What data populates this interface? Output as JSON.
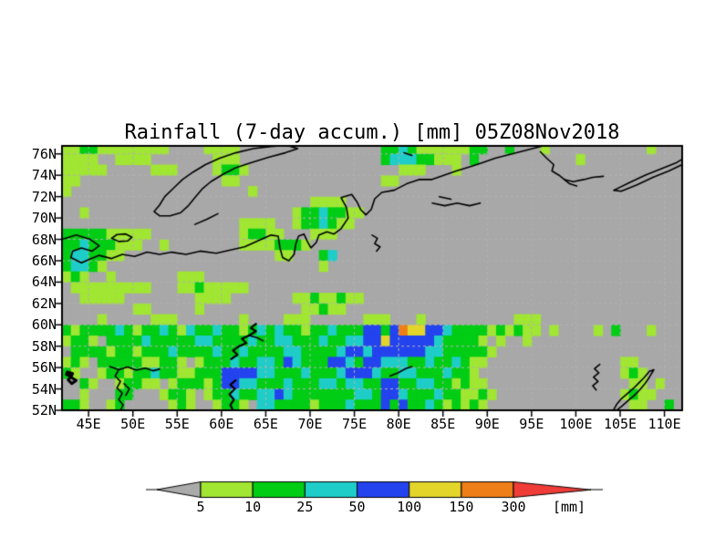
{
  "title": "Rainfall (7-day accum.) [mm] 05Z08Nov2018",
  "colors": {
    "page_background": "#ffffff",
    "map_background": "#a8a8a8",
    "coastline": "#000000",
    "frame": "#000000",
    "gridline": "#b2b2b2",
    "levels": {
      "a": "#a0e632",
      "b": "#00cd14",
      "c": "#1ecdc8",
      "d": "#2343ee",
      "e": "#e3d52a",
      "f": "#ee7e18"
    }
  },
  "axes": {
    "lat_labels": [
      "76N",
      "74N",
      "72N",
      "70N",
      "68N",
      "66N",
      "64N",
      "62N",
      "60N",
      "58N",
      "56N",
      "54N",
      "52N"
    ],
    "lat_values": [
      76,
      74,
      72,
      70,
      68,
      66,
      64,
      62,
      60,
      58,
      56,
      54,
      52
    ],
    "lon_labels": [
      "45E",
      "50E",
      "55E",
      "60E",
      "65E",
      "70E",
      "75E",
      "80E",
      "85E",
      "90E",
      "95E",
      "100E",
      "105E",
      "110E"
    ],
    "lon_values": [
      45,
      50,
      55,
      60,
      65,
      70,
      75,
      80,
      85,
      90,
      95,
      100,
      105,
      110
    ]
  },
  "colorbar": {
    "tick_labels": [
      "5",
      "10",
      "25",
      "50",
      "100",
      "150",
      "300"
    ],
    "units_label": "[mm]",
    "segment_colors": [
      "#a0e632",
      "#00cd14",
      "#1ecdc8",
      "#2343ee",
      "#e3d52a",
      "#ee7e18"
    ],
    "under_color": "#ababab",
    "over_color": "#f03c38"
  },
  "chart_data": {
    "type": "heatmap",
    "description": "7-day accumulated rainfall [mm] on lon/lat grid; '.'=<5 (gray), a=5-10, b=10-25, c=25-50, d=50-100, e=100-150, f=150-300",
    "lon_start": 42,
    "lon_step": 1,
    "lat_start": 77,
    "lat_step": -1,
    "lon_range": [
      42,
      112
    ],
    "lat_range": [
      52,
      76.75
    ],
    "rows": [
      [
        "aabbaaaaaa",
        "aa....aaaa",
        "..........",
        "......bbcb",
        "aaaaaabb..",
        "b...a.....",
        "......a..."
      ],
      [
        "aaaa..aaaa",
        ".......aaa",
        "..........",
        "......bccc",
        "bbaaa.b...",
        "........a.",
        ".........."
      ],
      [
        "aaaaa.....",
        "aaa....abb",
        "a.........",
        "........aa",
        "a...a.....",
        "..........",
        ".........."
      ],
      [
        "aa........",
        "........aa",
        "..........",
        "......aa..",
        "..........",
        "..........",
        ".........."
      ],
      [
        "a.........",
        "..........",
        ".a........",
        "..........",
        "..........",
        "..........",
        ".........."
      ],
      [
        "..........",
        "..........",
        "........aa",
        "aa........",
        "..........",
        "..........",
        ".........."
      ],
      [
        "..a.......",
        "..........",
        "......abbc",
        "bbaa......",
        "..........",
        "..........",
        ".........."
      ],
      [
        "..........",
        "..........",
        "aaaa..abbc",
        "baa.......",
        "..........",
        "..........",
        ".........."
      ],
      [
        "bbbbbaaaaa",
        "..........",
        "abbaa...aa",
        "a.........",
        "..........",
        "..........",
        ".........."
      ],
      [
        "bbcbbbaaa.",
        ".a........",
        "aaaabbba..",
        "..........",
        "..........",
        "..........",
        ".........."
      ],
      [
        "bccbbaa...",
        "..........",
        "....aa...b",
        "c.........",
        "..........",
        "..........",
        ".........."
      ],
      [
        "bccba.....",
        "..........",
        ".........a",
        "..........",
        "..........",
        "..........",
        ".........."
      ],
      [
        "aba..a....",
        "...aaa....",
        "..........",
        "..........",
        "..........",
        "..........",
        ".........."
      ],
      [
        ".aaaaaaaaa",
        "...aabaaaa",
        "a.........",
        "..........",
        "..........",
        "..........",
        ".........."
      ],
      [
        "..aaaaa...",
        ".....aaaa.",
        "......aaba",
        "abaa......",
        "..........",
        "..........",
        ".........."
      ],
      [
        "........aa",
        ".....a....",
        ".......aab",
        "aa........",
        "..........",
        "..........",
        ".........."
      ],
      [
        "....a.....",
        "aaa.......",
        "a....aaa..",
        "....aaa...",
        "a.........",
        ".aaa......",
        ".........."
      ],
      [
        "babbbbcbab",
        "bcbacbbcbb",
        "abcbcbbabb",
        "cbbbddbdfe",
        "eddcbbbbab",
        "abaa.a....",
        "a.b...a..."
      ],
      [
        "abba.bbbbc",
        "bbbbbccbbb",
        "bcbbccbbbc",
        "bbccddeddd",
        "ddcbbbba.a",
        "..a.......",
        ".........."
      ],
      [
        ".bbbbabbab",
        "bbcbbbbcbb",
        "cbbbbccbbb",
        "bcddcddddd",
        "dccbbbbba.",
        "..........",
        ".........."
      ],
      [
        "aba.bbbbba",
        "abba.abbbc",
        "bbccbdcbbb",
        "ddcbddcccb",
        "bcbbcbaa..",
        "..........",
        "...aa....."
      ],
      [
        "ba..abbabb",
        "cbbaabbbdd",
        "ddccbbbcbb",
        "bcdddcbbcc",
        "bbbcbba...",
        "..........",
        "...aba...."
      ],
      [
        "..ba..abba",
        "a.abbbabdd",
        "ccbbbcbbbc",
        "cbccbbddbb",
        "ccbbabaa..",
        "..........",
        "....aa.a.."
      ],
      [
        "..a...bb..",
        ".abba.abbc",
        "bbccdcbbbb",
        "bbbccbddcb",
        "bbcbbaaba.",
        "..........",
        "...abaa..."
      ],
      [
        "bba..ab...",
        "..aba..abb",
        "a.ccbbbbab",
        "bbcbbbdbdb",
        "bcbababa..",
        "..........",
        "....aa..b."
      ]
    ],
    "coastlines": [
      {
        "pts": [
          [
            42,
            68.0
          ],
          [
            43.6,
            68.4
          ],
          [
            45.2,
            68.0
          ],
          [
            46.2,
            67.4
          ],
          [
            45.4,
            66.9
          ],
          [
            44.2,
            67.2
          ],
          [
            43.2,
            66.9
          ],
          [
            43.0,
            66.3
          ],
          [
            44.2,
            65.8
          ],
          [
            45.0,
            66.1
          ],
          [
            46.2,
            66.5
          ],
          [
            47.6,
            66.2
          ],
          [
            48.8,
            66.6
          ],
          [
            50.2,
            66.4
          ],
          [
            51.6,
            66.8
          ],
          [
            53.0,
            66.6
          ],
          [
            54.4,
            66.8
          ],
          [
            56.0,
            66.6
          ],
          [
            57.6,
            66.9
          ],
          [
            59.4,
            66.7
          ],
          [
            61.0,
            67.0
          ],
          [
            62.6,
            67.3
          ],
          [
            64.2,
            67.9
          ],
          [
            65.6,
            68.4
          ],
          [
            66.4,
            68.3
          ],
          [
            66.6,
            67.2
          ],
          [
            66.9,
            66.3
          ],
          [
            67.6,
            66.0
          ],
          [
            68.2,
            66.6
          ],
          [
            68.4,
            67.6
          ],
          [
            68.7,
            68.3
          ],
          [
            69.3,
            68.5
          ],
          [
            69.7,
            67.8
          ],
          [
            70.1,
            67.2
          ],
          [
            70.7,
            67.7
          ],
          [
            71.0,
            68.4
          ],
          [
            71.9,
            68.7
          ],
          [
            72.7,
            68.5
          ],
          [
            73.5,
            69.0
          ],
          [
            74.3,
            70.0
          ],
          [
            74.1,
            71.0
          ],
          [
            73.5,
            71.9
          ],
          [
            74.7,
            72.2
          ],
          [
            75.3,
            71.5
          ],
          [
            75.7,
            70.8
          ],
          [
            76.3,
            70.3
          ],
          [
            76.9,
            70.8
          ],
          [
            77.3,
            71.8
          ],
          [
            78.1,
            72.4
          ],
          [
            79.5,
            72.6
          ],
          [
            80.9,
            73.2
          ],
          [
            82.3,
            73.6
          ],
          [
            83.7,
            73.6
          ],
          [
            85.1,
            74.0
          ],
          [
            86.5,
            74.4
          ],
          [
            88.1,
            74.8
          ],
          [
            89.5,
            75.2
          ],
          [
            90.9,
            75.6
          ],
          [
            92.3,
            75.9
          ],
          [
            93.7,
            76.2
          ],
          [
            95.1,
            76.5
          ],
          [
            96.3,
            76.75
          ]
        ]
      },
      {
        "pts": [
          [
            96.0,
            76.2
          ],
          [
            96.7,
            75.6
          ],
          [
            97.5,
            75.0
          ],
          [
            97.3,
            74.4
          ],
          [
            98.1,
            74.0
          ],
          [
            98.7,
            73.6
          ],
          [
            99.7,
            73.4
          ],
          [
            100.9,
            73.6
          ],
          [
            101.9,
            73.8
          ],
          [
            103.1,
            73.9
          ]
        ]
      },
      {
        "pts": [
          [
            98.7,
            73.6
          ],
          [
            99.3,
            73.2
          ],
          [
            100.1,
            73.0
          ]
        ]
      },
      {
        "pts": [
          [
            104.3,
            72.6
          ],
          [
            106.0,
            73.3
          ],
          [
            107.8,
            74.0
          ],
          [
            109.6,
            74.6
          ],
          [
            111.4,
            75.2
          ],
          [
            112.0,
            75.5
          ]
        ]
      },
      {
        "pts": [
          [
            104.3,
            72.6
          ],
          [
            105.1,
            72.5
          ],
          [
            106.9,
            73.1
          ],
          [
            108.7,
            73.8
          ],
          [
            110.5,
            74.4
          ],
          [
            112.0,
            75.0
          ]
        ]
      },
      {
        "pts": [
          [
            52.4,
            70.6
          ],
          [
            53.0,
            71.2
          ],
          [
            53.6,
            72.0
          ],
          [
            54.6,
            72.8
          ],
          [
            55.6,
            73.6
          ],
          [
            56.8,
            74.3
          ],
          [
            58.2,
            75.0
          ],
          [
            59.8,
            75.6
          ],
          [
            61.6,
            76.1
          ],
          [
            63.6,
            76.5
          ],
          [
            65.6,
            76.7
          ],
          [
            67.4,
            76.8
          ],
          [
            68.6,
            76.5
          ],
          [
            67.2,
            76.1
          ],
          [
            65.4,
            75.7
          ],
          [
            63.4,
            75.2
          ],
          [
            61.6,
            74.7
          ],
          [
            60.2,
            74.1
          ],
          [
            58.8,
            73.4
          ],
          [
            57.8,
            72.7
          ],
          [
            57.0,
            71.9
          ],
          [
            56.2,
            71.1
          ],
          [
            55.4,
            70.5
          ],
          [
            54.2,
            70.2
          ],
          [
            53.0,
            70.2
          ],
          [
            52.4,
            70.6
          ]
        ]
      },
      {
        "pts": [
          [
            57.0,
            69.4
          ],
          [
            58.4,
            69.9
          ],
          [
            59.6,
            70.4
          ]
        ]
      },
      {
        "pts": [
          [
            47.6,
            68.1
          ],
          [
            48.2,
            68.45
          ],
          [
            49.2,
            68.5
          ],
          [
            49.9,
            68.2
          ],
          [
            49.4,
            67.85
          ],
          [
            48.4,
            67.8
          ],
          [
            47.6,
            68.1
          ]
        ]
      },
      {
        "pts": [
          [
            83.8,
            71.4
          ],
          [
            85.2,
            71.15
          ],
          [
            86.6,
            71.4
          ],
          [
            88.0,
            71.15
          ],
          [
            89.2,
            71.4
          ]
        ]
      },
      {
        "pts": [
          [
            84.6,
            72.0
          ],
          [
            85.9,
            71.75
          ]
        ]
      },
      {
        "pts": [
          [
            77.0,
            68.4
          ],
          [
            77.6,
            68.1
          ],
          [
            77.3,
            67.6
          ],
          [
            77.9,
            67.3
          ],
          [
            77.5,
            66.9
          ]
        ]
      },
      {
        "pts": [
          [
            80.6,
            76.1
          ],
          [
            81.5,
            75.85
          ]
        ]
      },
      {
        "pts": [
          [
            47.4,
            56.1
          ],
          [
            48.4,
            55.8
          ],
          [
            49.4,
            56.05
          ],
          [
            50.4,
            55.75
          ],
          [
            51.4,
            55.95
          ],
          [
            52.3,
            55.7
          ],
          [
            53.0,
            55.85
          ]
        ]
      },
      {
        "pts": [
          [
            48.4,
            55.8
          ],
          [
            48.0,
            55.2
          ],
          [
            48.6,
            54.7
          ],
          [
            48.2,
            54.1
          ],
          [
            48.8,
            53.6
          ],
          [
            48.4,
            53.0
          ],
          [
            48.9,
            52.5
          ],
          [
            48.6,
            52.0
          ]
        ]
      },
      {
        "pts": [
          [
            49.0,
            54.5
          ],
          [
            49.6,
            54.0
          ],
          [
            49.2,
            53.4
          ]
        ]
      },
      {
        "lw": 3,
        "pts": [
          [
            42.6,
            55.6
          ],
          [
            43.2,
            55.45
          ],
          [
            43.0,
            55.1
          ],
          [
            43.6,
            54.8
          ],
          [
            43.1,
            54.5
          ],
          [
            42.7,
            54.85
          ],
          [
            43.0,
            55.2
          ],
          [
            42.5,
            55.35
          ],
          [
            42.6,
            55.6
          ]
        ]
      },
      {
        "lw": 2.2,
        "pts": [
          [
            63.9,
            60.1
          ],
          [
            63.3,
            59.7
          ],
          [
            63.9,
            59.4
          ],
          [
            63.1,
            59.0
          ],
          [
            62.3,
            58.7
          ],
          [
            62.8,
            58.3
          ],
          [
            62.0,
            58.0
          ],
          [
            61.3,
            57.6
          ],
          [
            61.8,
            57.2
          ],
          [
            61.1,
            56.8
          ]
        ]
      },
      {
        "pts": [
          [
            63.1,
            59.0
          ],
          [
            64.0,
            58.8
          ],
          [
            64.7,
            58.5
          ]
        ]
      },
      {
        "lw": 2.2,
        "pts": [
          [
            61.6,
            54.8
          ],
          [
            61.0,
            54.4
          ],
          [
            61.5,
            54.0
          ],
          [
            60.9,
            53.5
          ],
          [
            61.4,
            53.0
          ],
          [
            61.0,
            52.5
          ],
          [
            61.3,
            52.0
          ]
        ]
      },
      {
        "pts": [
          [
            79.0,
            55.2
          ],
          [
            79.9,
            55.5
          ],
          [
            80.8,
            55.9
          ],
          [
            81.5,
            56.1
          ]
        ]
      },
      {
        "pts": [
          [
            102.7,
            56.3
          ],
          [
            102.1,
            55.9
          ],
          [
            102.6,
            55.5
          ],
          [
            102.0,
            55.1
          ],
          [
            102.5,
            54.7
          ],
          [
            101.9,
            54.3
          ],
          [
            102.3,
            53.9
          ]
        ]
      },
      {
        "pts": [
          [
            104.6,
            52.0
          ],
          [
            105.2,
            52.4
          ],
          [
            105.9,
            52.9
          ],
          [
            106.6,
            53.4
          ],
          [
            107.2,
            53.9
          ],
          [
            107.8,
            54.5
          ],
          [
            108.3,
            55.1
          ],
          [
            108.8,
            55.8
          ],
          [
            108.3,
            55.65
          ],
          [
            107.7,
            55.05
          ],
          [
            107.1,
            54.55
          ],
          [
            106.5,
            54.05
          ],
          [
            105.8,
            53.55
          ],
          [
            105.1,
            53.05
          ],
          [
            104.6,
            52.55
          ],
          [
            104.3,
            52.1
          ]
        ]
      }
    ]
  }
}
